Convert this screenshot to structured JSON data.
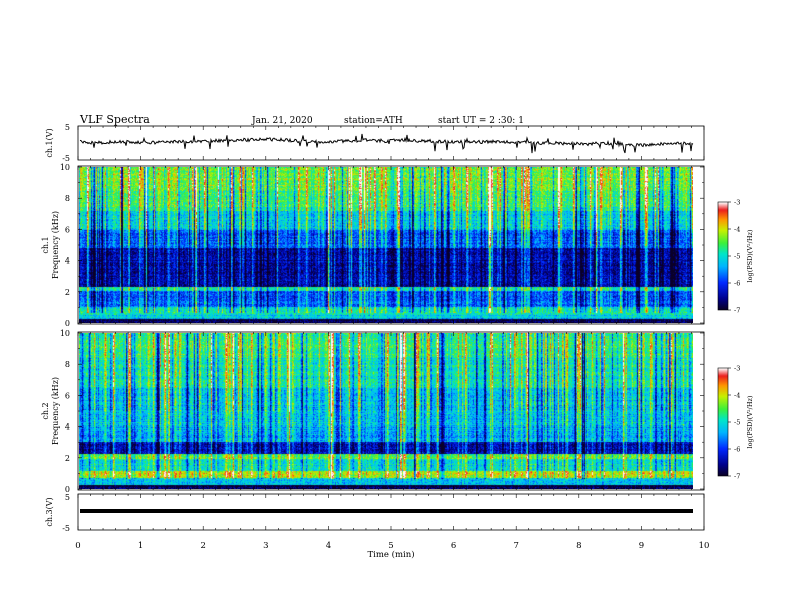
{
  "header": {
    "title": "VLF  Spectra",
    "date": "Jan. 21, 2020",
    "station": "station=ATH",
    "start": "start  UT  =   2  :30: 1"
  },
  "chart_data": [
    {
      "type": "line",
      "name": "ch1-waveform",
      "ylabel": "ch.1(V)",
      "ylim": [
        -5,
        5
      ],
      "yticks": [
        "5",
        "-5"
      ],
      "xlim": [
        0,
        10
      ],
      "approx_level": 0.3
    },
    {
      "type": "heatmap",
      "name": "ch1-spectrogram",
      "ylabel": "ch.1\nFrequency (kHz)",
      "ylabel_lines": [
        "ch.1",
        "Frequency (kHz)"
      ],
      "ylim": [
        0,
        10
      ],
      "yticks": [
        "0",
        "2",
        "4",
        "6",
        "8",
        "10"
      ],
      "xlim": [
        0,
        9.8
      ],
      "colorbar": {
        "label": "log(PSD)(V²/Hz)",
        "range": [
          -7,
          -3
        ],
        "ticks": [
          "-3",
          "-4",
          "-5",
          "-6",
          "-7"
        ]
      }
    },
    {
      "type": "heatmap",
      "name": "ch2-spectrogram",
      "ylabel_lines": [
        "ch.2",
        "Frequency (kHz)"
      ],
      "ylim": [
        0,
        10
      ],
      "yticks": [
        "0",
        "2",
        "4",
        "6",
        "8",
        "10"
      ],
      "xlim": [
        0,
        9.8
      ],
      "colorbar": {
        "label": "log(PSD)(V²/Hz)",
        "range": [
          -7,
          -3
        ],
        "ticks": [
          "-3",
          "-4",
          "-5",
          "-6",
          "-7"
        ]
      }
    },
    {
      "type": "line",
      "name": "ch3-waveform",
      "ylabel": "ch.3(V)",
      "ylim": [
        -5,
        5
      ],
      "yticks": [
        "5",
        "-5"
      ],
      "xlim": [
        0,
        10
      ],
      "approx_level": 0.0
    }
  ],
  "xaxis": {
    "label": "Time  (min)",
    "ticks": [
      "0",
      "1",
      "2",
      "3",
      "4",
      "5",
      "6",
      "7",
      "8",
      "9",
      "10"
    ],
    "range": [
      0,
      10
    ]
  }
}
